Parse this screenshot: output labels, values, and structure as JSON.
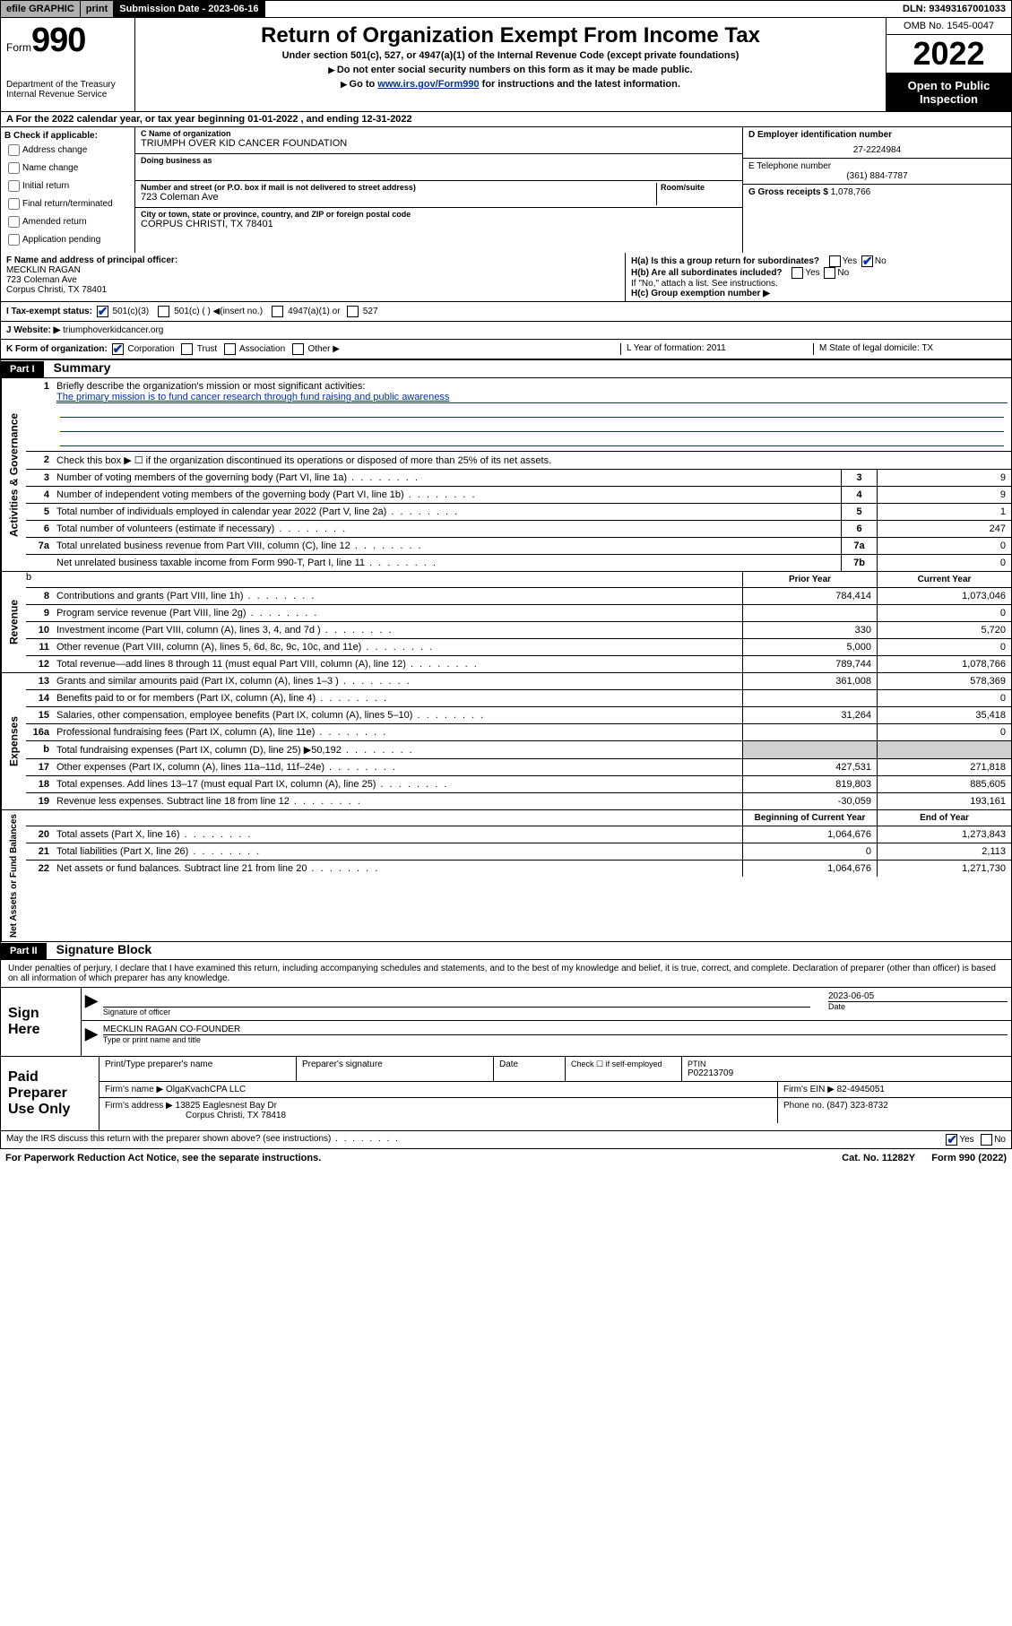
{
  "topbar": {
    "efile": "efile GRAPHIC",
    "print": "print",
    "subdate_label": "Submission Date - 2023-06-16",
    "dln": "DLN: 93493167001033"
  },
  "header": {
    "form_prefix": "Form",
    "form_number": "990",
    "dept": "Department of the Treasury\nInternal Revenue Service",
    "title": "Return of Organization Exempt From Income Tax",
    "subtitle": "Under section 501(c), 527, or 4947(a)(1) of the Internal Revenue Code (except private foundations)",
    "instr1": "Do not enter social security numbers on this form as it may be made public.",
    "instr2_pre": "Go to ",
    "instr2_link": "www.irs.gov/Form990",
    "instr2_post": " for instructions and the latest information.",
    "omb": "OMB No. 1545-0047",
    "year": "2022",
    "open": "Open to Public Inspection"
  },
  "rowA": {
    "text_pre": "A For the 2022 calendar year, or tax year beginning ",
    "begin": "01-01-2022",
    "mid": " , and ending ",
    "end": "12-31-2022"
  },
  "colB": {
    "label": "B Check if applicable:",
    "items": [
      "Address change",
      "Name change",
      "Initial return",
      "Final return/terminated",
      "Amended return",
      "Application pending"
    ]
  },
  "colC": {
    "name_label": "C Name of organization",
    "name": "TRIUMPH OVER KID CANCER FOUNDATION",
    "dba_label": "Doing business as",
    "street_label": "Number and street (or P.O. box if mail is not delivered to street address)",
    "suite_label": "Room/suite",
    "street": "723 Coleman Ave",
    "city_label": "City or town, state or province, country, and ZIP or foreign postal code",
    "city": "CORPUS CHRISTI, TX  78401"
  },
  "colD": {
    "ein_label": "D Employer identification number",
    "ein": "27-2224984",
    "phone_label": "E Telephone number",
    "phone": "(361) 884-7787",
    "gross_label": "G Gross receipts $",
    "gross": "1,078,766"
  },
  "rowF": {
    "label": "F Name and address of principal officer:",
    "name": "MECKLIN RAGAN",
    "addr1": "723 Coleman Ave",
    "addr2": "Corpus Christi, TX  78401"
  },
  "rowH": {
    "ha": "H(a)  Is this a group return for subordinates?",
    "hb": "H(b)  Are all subordinates included?",
    "hb_note": "If \"No,\" attach a list. See instructions.",
    "hc": "H(c)  Group exemption number ▶"
  },
  "rowI": {
    "label": "I    Tax-exempt status:",
    "opts": [
      "501(c)(3)",
      "501(c) ( ) ◀(insert no.)",
      "4947(a)(1) or",
      "527"
    ]
  },
  "rowJ": {
    "label": "J    Website: ▶",
    "val": "triumphoverkidcancer.org"
  },
  "rowK": {
    "label": "K Form of organization:",
    "opts": [
      "Corporation",
      "Trust",
      "Association",
      "Other ▶"
    ],
    "L": "L Year of formation: 2011",
    "M": "M State of legal domicile: TX"
  },
  "part1": {
    "badge": "Part I",
    "title": "Summary"
  },
  "summary": {
    "tabs": [
      "Activities & Governance",
      "Revenue",
      "Expenses",
      "Net Assets or Fund Balances"
    ],
    "q1": "Briefly describe the organization's mission or most significant activities:",
    "q1_ans": "The primary mission is to fund cancer research through fund raising and public awareness",
    "q2": "Check this box ▶ ☐  if the organization discontinued its operations or disposed of more than 25% of its net assets.",
    "lines_gov": [
      {
        "n": "3",
        "d": "Number of voting members of the governing body (Part VI, line 1a)",
        "b": "3",
        "v": "9"
      },
      {
        "n": "4",
        "d": "Number of independent voting members of the governing body (Part VI, line 1b)",
        "b": "4",
        "v": "9"
      },
      {
        "n": "5",
        "d": "Total number of individuals employed in calendar year 2022 (Part V, line 2a)",
        "b": "5",
        "v": "1"
      },
      {
        "n": "6",
        "d": "Total number of volunteers (estimate if necessary)",
        "b": "6",
        "v": "247"
      },
      {
        "n": "7a",
        "d": "Total unrelated business revenue from Part VIII, column (C), line 12",
        "b": "7a",
        "v": "0"
      },
      {
        "n": "",
        "d": "Net unrelated business taxable income from Form 990-T, Part I, line 11",
        "b": "7b",
        "v": "0"
      }
    ],
    "col_prior": "Prior Year",
    "col_current": "Current Year",
    "col_boy": "Beginning of Current Year",
    "col_eoy": "End of Year",
    "lines_rev": [
      {
        "n": "8",
        "d": "Contributions and grants (Part VIII, line 1h)",
        "p": "784,414",
        "c": "1,073,046"
      },
      {
        "n": "9",
        "d": "Program service revenue (Part VIII, line 2g)",
        "p": "",
        "c": "0"
      },
      {
        "n": "10",
        "d": "Investment income (Part VIII, column (A), lines 3, 4, and 7d )",
        "p": "330",
        "c": "5,720"
      },
      {
        "n": "11",
        "d": "Other revenue (Part VIII, column (A), lines 5, 6d, 8c, 9c, 10c, and 11e)",
        "p": "5,000",
        "c": "0"
      },
      {
        "n": "12",
        "d": "Total revenue—add lines 8 through 11 (must equal Part VIII, column (A), line 12)",
        "p": "789,744",
        "c": "1,078,766"
      }
    ],
    "lines_exp": [
      {
        "n": "13",
        "d": "Grants and similar amounts paid (Part IX, column (A), lines 1–3 )",
        "p": "361,008",
        "c": "578,369"
      },
      {
        "n": "14",
        "d": "Benefits paid to or for members (Part IX, column (A), line 4)",
        "p": "",
        "c": "0"
      },
      {
        "n": "15",
        "d": "Salaries, other compensation, employee benefits (Part IX, column (A), lines 5–10)",
        "p": "31,264",
        "c": "35,418"
      },
      {
        "n": "16a",
        "d": "Professional fundraising fees (Part IX, column (A), line 11e)",
        "p": "",
        "c": "0"
      },
      {
        "n": "b",
        "d": "Total fundraising expenses (Part IX, column (D), line 25) ▶50,192",
        "p": "shade",
        "c": "shade"
      },
      {
        "n": "17",
        "d": "Other expenses (Part IX, column (A), lines 11a–11d, 11f–24e)",
        "p": "427,531",
        "c": "271,818"
      },
      {
        "n": "18",
        "d": "Total expenses. Add lines 13–17 (must equal Part IX, column (A), line 25)",
        "p": "819,803",
        "c": "885,605"
      },
      {
        "n": "19",
        "d": "Revenue less expenses. Subtract line 18 from line 12",
        "p": "-30,059",
        "c": "193,161"
      }
    ],
    "lines_net": [
      {
        "n": "20",
        "d": "Total assets (Part X, line 16)",
        "p": "1,064,676",
        "c": "1,273,843"
      },
      {
        "n": "21",
        "d": "Total liabilities (Part X, line 26)",
        "p": "0",
        "c": "2,113"
      },
      {
        "n": "22",
        "d": "Net assets or fund balances. Subtract line 21 from line 20",
        "p": "1,064,676",
        "c": "1,271,730"
      }
    ]
  },
  "part2": {
    "badge": "Part II",
    "title": "Signature Block"
  },
  "sig": {
    "perjury": "Under penalties of perjury, I declare that I have examined this return, including accompanying schedules and statements, and to the best of my knowledge and belief, it is true, correct, and complete. Declaration of preparer (other than officer) is based on all information of which preparer has any knowledge.",
    "sign_here": "Sign Here",
    "sig_officer": "Signature of officer",
    "date_label": "Date",
    "date": "2023-06-05",
    "name_title": "MECKLIN RAGAN  CO-FOUNDER",
    "name_title_label": "Type or print name and title"
  },
  "prep": {
    "title": "Paid Preparer Use Only",
    "h1": "Print/Type preparer's name",
    "h2": "Preparer's signature",
    "h3": "Date",
    "h4_pre": "Check ☐ if self-employed",
    "h5": "PTIN",
    "ptin": "P02213709",
    "firm_label": "Firm's name    ▶",
    "firm": "OlgaKvachCPA LLC",
    "ein_label": "Firm's EIN ▶",
    "ein": "82-4945051",
    "addr_label": "Firm's address ▶",
    "addr1": "13825 Eaglesnest Bay Dr",
    "addr2": "Corpus Christi, TX  78418",
    "phone_label": "Phone no.",
    "phone": "(847) 323-8732"
  },
  "footer": {
    "discuss": "May the IRS discuss this return with the preparer shown above? (see instructions)",
    "paperwork": "For Paperwork Reduction Act Notice, see the separate instructions.",
    "cat": "Cat. No. 11282Y",
    "form": "Form 990 (2022)"
  }
}
